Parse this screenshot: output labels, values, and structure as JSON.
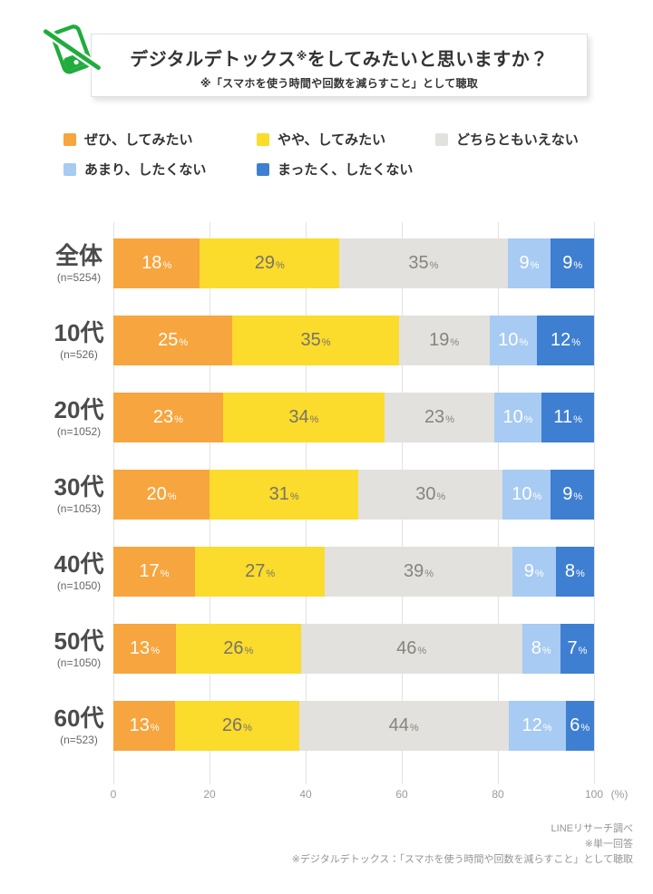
{
  "header": {
    "title_main": "デジタルデトックス",
    "title_note": "※",
    "title_rest": "をしてみたいと思いますか？",
    "subtitle": "※「スマホを使う時間や回数を減らすこと」として聴取",
    "icon": "no-smartphone-icon",
    "icon_color": "#1FAC3C"
  },
  "legend": [
    {
      "label": "ぜひ、してみたい",
      "color": "#F7A53E"
    },
    {
      "label": "やや、してみたい",
      "color": "#FBDB2B"
    },
    {
      "label": "どちらともいえない",
      "color": "#E3E1DD"
    },
    {
      "label": "あまり、したくない",
      "color": "#A7CBF2"
    },
    {
      "label": "まったく、したくない",
      "color": "#3E7FD1"
    }
  ],
  "chart_data": {
    "type": "bar",
    "orientation": "horizontal",
    "stacked": true,
    "categories": [
      "全体",
      "10代",
      "20代",
      "30代",
      "40代",
      "50代",
      "60代"
    ],
    "category_n": [
      "(n=5254)",
      "(n=526)",
      "(n=1052)",
      "(n=1053)",
      "(n=1050)",
      "(n=1050)",
      "(n=523)"
    ],
    "series": [
      {
        "name": "ぜひ、してみたい",
        "color": "#F7A53E",
        "text_color": "#FFFFFF",
        "values": [
          18,
          25,
          23,
          20,
          17,
          13,
          13
        ]
      },
      {
        "name": "やや、してみたい",
        "color": "#FBDB2B",
        "text_color": "#76736C",
        "values": [
          29,
          35,
          34,
          31,
          27,
          26,
          26
        ]
      },
      {
        "name": "どちらともいえない",
        "color": "#E3E1DD",
        "text_color": "#87847E",
        "values": [
          35,
          19,
          23,
          30,
          39,
          46,
          44
        ]
      },
      {
        "name": "あまり、したくない",
        "color": "#A7CBF2",
        "text_color": "#FFFFFF",
        "values": [
          9,
          10,
          10,
          10,
          9,
          8,
          12
        ]
      },
      {
        "name": "まったく、したくない",
        "color": "#3E7FD1",
        "text_color": "#FFFFFF",
        "values": [
          9,
          12,
          11,
          9,
          8,
          7,
          6
        ]
      }
    ],
    "value_suffix": "%",
    "x_ticks": [
      0,
      20,
      40,
      60,
      80,
      100
    ],
    "x_unit": "(%)",
    "xlim": [
      0,
      100
    ],
    "grid": true,
    "legend_position": "top"
  },
  "footer": {
    "lines": [
      "LINEリサーチ調べ",
      "※単一回答",
      "※デジタルデトックス：「スマホを使う時間や回数を減らすこと」として聴取"
    ]
  }
}
